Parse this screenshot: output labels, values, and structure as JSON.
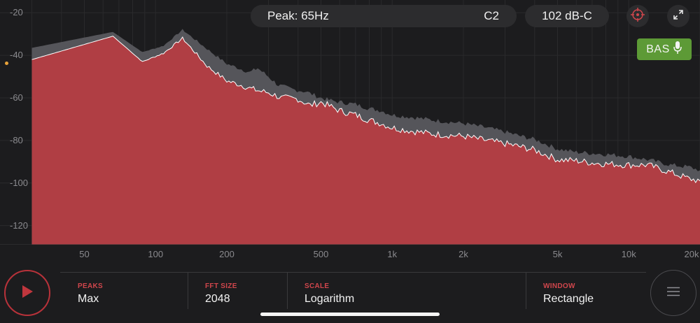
{
  "header": {
    "peak_text": "Peak: 65Hz",
    "note_text": "C2",
    "level_text": "102 dB-C",
    "bass_label": "BAS"
  },
  "icons": {
    "target": "crosshair-icon",
    "expand": "expand-diagonal-icon",
    "mic": "microphone-icon",
    "play": "play-icon",
    "menu": "hamburger-menu-icon"
  },
  "colors": {
    "background": "#1c1c1e",
    "live_fill": "#b03e44",
    "peak_fill": "#55555a",
    "accent_red": "#d0464c",
    "bass_green": "#5d9a36"
  },
  "chart_data": {
    "type": "area",
    "x_scale": "log",
    "xlim": [
      22,
      20000
    ],
    "ylim": [
      -129,
      -14
    ],
    "y_ticks": [
      -20,
      -40,
      -60,
      -80,
      -100,
      -120
    ],
    "x_ticks": [
      {
        "value": 50,
        "label": "50"
      },
      {
        "value": 100,
        "label": "100"
      },
      {
        "value": 200,
        "label": "200"
      },
      {
        "value": 500,
        "label": "500"
      },
      {
        "value": 1000,
        "label": "1k"
      },
      {
        "value": 2000,
        "label": "2k"
      },
      {
        "value": 5000,
        "label": "5k"
      },
      {
        "value": 10000,
        "label": "10k"
      },
      {
        "value": 20000,
        "label": "20k"
      }
    ],
    "series": [
      {
        "role": "peak-hold",
        "x": [
          30,
          66,
          88,
          108,
          130,
          165,
          200,
          250,
          270,
          300,
          330,
          380,
          430,
          500,
          540,
          600,
          700,
          800,
          900,
          1000,
          1200,
          1500,
          2000,
          2500,
          3000,
          3500,
          4000,
          5000,
          6000,
          8000,
          10000,
          12000,
          15000,
          18000,
          20000
        ],
        "y": [
          -36.5,
          -29,
          -38.5,
          -35.5,
          -28,
          -37,
          -44,
          -48,
          -46,
          -50,
          -54,
          -56,
          -57,
          -60,
          -61,
          -62,
          -63,
          -65,
          -66,
          -68,
          -69,
          -70.5,
          -72,
          -74,
          -76,
          -78,
          -79.5,
          -84,
          -85.5,
          -86.5,
          -87.5,
          -89,
          -91.5,
          -92.5,
          -94
        ]
      },
      {
        "role": "live",
        "x": [
          30,
          66,
          88,
          108,
          130,
          165,
          200,
          230,
          250,
          280,
          300,
          340,
          400,
          450,
          500,
          600,
          700,
          800,
          900,
          1000,
          1200,
          1500,
          2000,
          2500,
          3000,
          3500,
          4000,
          5000,
          6000,
          7000,
          8000,
          10000,
          12000,
          15000,
          18000,
          20000
        ],
        "y": [
          -42,
          -31,
          -43,
          -39,
          -32,
          -45,
          -52,
          -54,
          -55.5,
          -57,
          -57.5,
          -60,
          -60.5,
          -63.5,
          -62,
          -66,
          -68,
          -70.5,
          -72,
          -74,
          -75.5,
          -77,
          -78,
          -80,
          -81.5,
          -83,
          -84.5,
          -89,
          -89.5,
          -90.5,
          -91,
          -91.5,
          -91.5,
          -95,
          -98,
          -99
        ]
      }
    ]
  },
  "settings": [
    {
      "label": "PEAKS",
      "value": "Max"
    },
    {
      "label": "FFT SIZE",
      "value": "2048"
    },
    {
      "label": "SCALE",
      "value": "Logarithm"
    },
    {
      "label": "WINDOW",
      "value": "Rectangle"
    }
  ]
}
